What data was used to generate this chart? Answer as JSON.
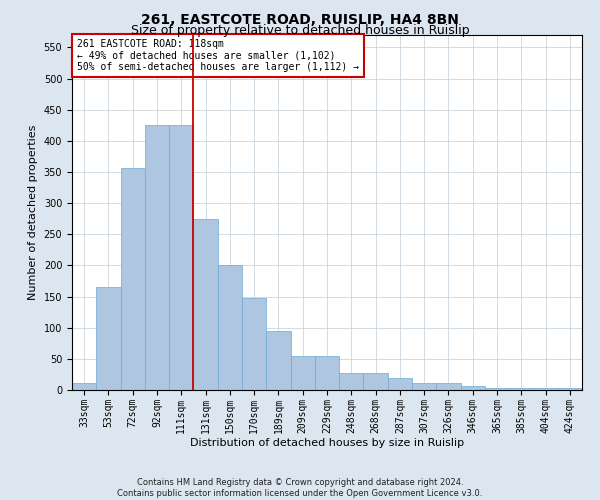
{
  "title": "261, EASTCOTE ROAD, RUISLIP, HA4 8BN",
  "subtitle": "Size of property relative to detached houses in Ruislip",
  "xlabel": "Distribution of detached houses by size in Ruislip",
  "ylabel": "Number of detached properties",
  "footer_line1": "Contains HM Land Registry data © Crown copyright and database right 2024.",
  "footer_line2": "Contains public sector information licensed under the Open Government Licence v3.0.",
  "categories": [
    "33sqm",
    "53sqm",
    "72sqm",
    "92sqm",
    "111sqm",
    "131sqm",
    "150sqm",
    "170sqm",
    "189sqm",
    "209sqm",
    "229sqm",
    "248sqm",
    "268sqm",
    "287sqm",
    "307sqm",
    "326sqm",
    "346sqm",
    "365sqm",
    "385sqm",
    "404sqm",
    "424sqm"
  ],
  "values": [
    12,
    165,
    357,
    425,
    425,
    275,
    200,
    148,
    95,
    55,
    55,
    27,
    27,
    20,
    11,
    11,
    7,
    4,
    4,
    3,
    3
  ],
  "bar_color": "#aec6e0",
  "bar_edge_color": "#6aaad4",
  "vline_x": 4.5,
  "vline_color": "#cc0000",
  "annotation_text": "261 EASTCOTE ROAD: 118sqm\n← 49% of detached houses are smaller (1,102)\n50% of semi-detached houses are larger (1,112) →",
  "annotation_box_color": "#ffffff",
  "annotation_box_edge": "#cc0000",
  "ylim": [
    0,
    570
  ],
  "yticks": [
    0,
    50,
    100,
    150,
    200,
    250,
    300,
    350,
    400,
    450,
    500,
    550
  ],
  "bg_color": "#dce6f0",
  "plot_bg_color": "#ffffff",
  "title_fontsize": 10,
  "subtitle_fontsize": 9,
  "tick_fontsize": 7,
  "ylabel_fontsize": 8,
  "xlabel_fontsize": 8,
  "footer_fontsize": 6,
  "annotation_fontsize": 7
}
